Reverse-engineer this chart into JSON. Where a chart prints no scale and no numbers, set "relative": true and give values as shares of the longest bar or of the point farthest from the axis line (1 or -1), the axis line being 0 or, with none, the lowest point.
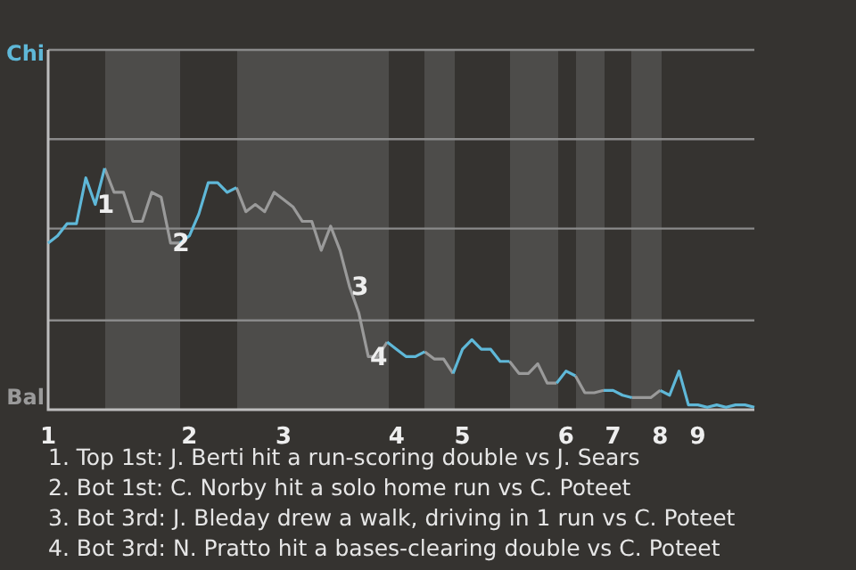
{
  "chart_data": {
    "type": "line",
    "relative": true,
    "categories": [
      "1",
      null,
      null,
      null,
      null,
      null,
      null,
      null,
      null,
      null,
      null,
      null,
      null,
      null,
      null,
      "2",
      null,
      null,
      null,
      null,
      null,
      null,
      null,
      null,
      null,
      "3",
      null,
      null,
      null,
      null,
      null,
      null,
      null,
      null,
      null,
      null,
      null,
      "4",
      null,
      null,
      null,
      null,
      null,
      null,
      "5",
      null,
      null,
      null,
      null,
      null,
      null,
      null,
      null,
      null,
      null,
      "6",
      null,
      null,
      null,
      null,
      "7",
      null,
      null,
      null,
      null,
      "8",
      null,
      null,
      null,
      "9",
      null,
      null,
      null,
      null,
      null,
      null
    ],
    "series": [
      {
        "color": "#5fb8d8",
        "values": [
          0.69,
          0.72,
          0.77,
          0.77,
          0.96,
          0.85,
          1,
          null,
          null,
          null,
          null,
          null,
          null,
          null,
          0.69,
          0.72,
          0.81,
          0.94,
          0.94,
          0.9,
          0.92,
          null,
          null,
          null,
          null,
          null,
          null,
          null,
          null,
          null,
          null,
          null,
          null,
          null,
          null,
          null,
          0.28,
          0.25,
          0.22,
          0.22,
          0.24,
          null,
          null,
          0.15,
          0.25,
          0.29,
          0.25,
          0.25,
          0.2,
          0.2,
          null,
          null,
          null,
          null,
          0.11,
          0.16,
          0.14,
          null,
          null,
          0.08,
          0.08,
          0.06,
          0.05,
          null,
          null,
          0.08,
          0.06,
          0.16,
          0.02,
          0.02,
          0.01,
          0.02,
          0.01,
          0.02,
          0.02,
          0.01
        ]
      },
      {
        "color": "#9a9a9a",
        "values": [
          null,
          null,
          null,
          null,
          null,
          null,
          1,
          0.9,
          0.9,
          0.78,
          0.78,
          0.9,
          0.88,
          0.69,
          0.69,
          null,
          null,
          null,
          null,
          null,
          0.92,
          0.82,
          0.85,
          0.82,
          0.9,
          0.87,
          0.84,
          0.78,
          0.78,
          0.66,
          0.76,
          0.66,
          0.51,
          0.4,
          0.22,
          0.22,
          0.28,
          null,
          null,
          null,
          0.24,
          0.21,
          0.21,
          0.15,
          null,
          null,
          null,
          null,
          null,
          0.2,
          0.15,
          0.15,
          0.19,
          0.11,
          0.11,
          null,
          0.14,
          0.07,
          0.07,
          0.08,
          null,
          null,
          0.05,
          0.05,
          0.05,
          0.08,
          null,
          null,
          null,
          null,
          null,
          null,
          null,
          null,
          null,
          null
        ]
      }
    ],
    "ref_lines": [
      {
        "axis": "y",
        "value": 0.37,
        "color": "#8a8a8a"
      },
      {
        "axis": "y",
        "value": 0.75,
        "color": "#8a8a8a"
      },
      {
        "axis": "y",
        "value": 1.12,
        "color": "#8a8a8a"
      },
      {
        "axis": "y",
        "value": 1.49,
        "color": "#8a8a8a"
      }
    ],
    "annotations": [
      "Chi",
      "Bal",
      {
        "text": "1",
        "y": 0.85
      },
      {
        "text": "2",
        "y": 0.69
      },
      {
        "text": "3",
        "y": 0.51
      },
      {
        "text": "4",
        "y": 0.22
      },
      "1. Top 1st: J. Berti hit a run-scoring double vs J. Sears",
      "2. Bot 1st: C. Norby hit a solo home run vs C. Poteet",
      "3. Bot 3rd: J. Bleday drew a walk, driving in 1 run vs C. Poteet",
      "4. Bot 3rd: N. Pratto hit a bases-clearing double vs C. Poteet"
    ],
    "marker": "none"
  }
}
